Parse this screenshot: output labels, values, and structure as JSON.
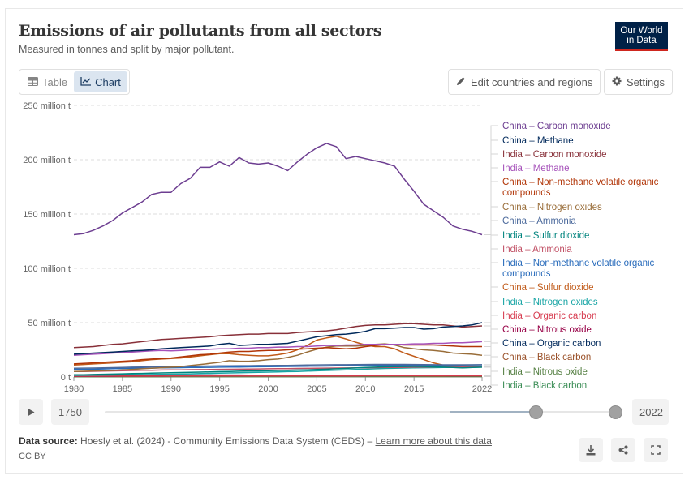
{
  "header": {
    "title": "Emissions of air pollutants from all sectors",
    "subtitle": "Measured in tonnes and split by major pollutant.",
    "logo_line1": "Our World",
    "logo_line2": "in Data"
  },
  "toolbar": {
    "tab_table": "Table",
    "tab_chart": "Chart",
    "active_tab": "Chart",
    "edit_button": "Edit countries and regions",
    "settings_button": "Settings"
  },
  "timeline": {
    "start_year": "1750",
    "end_year": "2022",
    "selected_start": 1980,
    "selected_end": 2022,
    "range_min": 1750,
    "range_max": 2022
  },
  "footer": {
    "source_label": "Data source:",
    "source_text": "Hoesly et al. (2024) - Community Emissions Data System (CEDS) – ",
    "learn_more": "Learn more about this data",
    "license": "CC BY"
  },
  "chart_data": {
    "type": "line",
    "title": "Emissions of air pollutants from all sectors",
    "subtitle": "Measured in tonnes and split by major pollutant.",
    "xlabel": "",
    "ylabel": "",
    "unit": "million t",
    "xlim": [
      1980,
      2022
    ],
    "ylim": [
      0,
      250
    ],
    "grid": true,
    "legend": "right",
    "x_ticks": [
      1980,
      1985,
      1990,
      1995,
      2000,
      2005,
      2010,
      2015,
      2022
    ],
    "y_ticks": [
      {
        "value": 0,
        "label": "0 t"
      },
      {
        "value": 50,
        "label": "50 million t"
      },
      {
        "value": 100,
        "label": "100 million t"
      },
      {
        "value": 150,
        "label": "150 million t"
      },
      {
        "value": 200,
        "label": "200 million t"
      },
      {
        "value": 250,
        "label": "250 million t"
      }
    ],
    "x": [
      1980,
      1981,
      1982,
      1983,
      1984,
      1985,
      1986,
      1987,
      1988,
      1989,
      1990,
      1991,
      1992,
      1993,
      1994,
      1995,
      1996,
      1997,
      1998,
      1999,
      2000,
      2001,
      2002,
      2003,
      2004,
      2005,
      2006,
      2007,
      2008,
      2009,
      2010,
      2011,
      2012,
      2013,
      2014,
      2015,
      2016,
      2017,
      2018,
      2019,
      2020,
      2021,
      2022
    ],
    "series": [
      {
        "name": "China – Carbon monoxide",
        "color": "#6d3e91",
        "values": [
          131,
          132,
          135,
          139,
          144,
          151,
          156,
          161,
          168,
          170,
          170,
          178,
          183,
          193,
          193,
          198,
          194,
          202,
          197,
          196,
          197,
          194,
          190,
          198,
          205,
          211,
          215,
          212,
          201,
          203,
          201,
          199,
          197,
          194,
          182,
          171,
          159,
          153,
          147,
          139,
          136,
          134,
          131
        ]
      },
      {
        "name": "China – Methane",
        "color": "#00295b",
        "values": [
          21,
          21.5,
          22,
          22.5,
          23,
          23.5,
          24,
          24.5,
          25,
          26,
          26.5,
          27,
          27.5,
          28,
          28.5,
          30,
          31,
          29,
          29.5,
          30,
          30,
          30.5,
          31,
          33,
          35,
          37,
          38,
          39,
          39.5,
          40.5,
          42,
          44.5,
          44.5,
          45,
          45.5,
          45.5,
          44,
          44.5,
          46,
          46.5,
          47,
          48,
          50
        ]
      },
      {
        "name": "India – Carbon monoxide",
        "color": "#883039",
        "values": [
          27,
          27.5,
          28,
          29,
          30,
          30.5,
          31.5,
          32.5,
          33.5,
          34.5,
          35,
          35.5,
          36,
          36.5,
          37,
          38,
          38.5,
          39,
          39.5,
          39.5,
          40,
          40,
          40,
          41,
          41.5,
          42,
          42.5,
          43.5,
          45,
          46.5,
          47.5,
          48,
          48,
          48.5,
          49,
          49,
          48.5,
          48,
          48,
          47,
          46,
          46.5,
          47
        ]
      },
      {
        "name": "India – Methane",
        "color": "#a652ba",
        "values": [
          20,
          20.5,
          21,
          21.5,
          22,
          22.5,
          23,
          23.5,
          24,
          24.5,
          24,
          24.5,
          25,
          25,
          25.5,
          26,
          26,
          26.5,
          26.5,
          27,
          27,
          27.5,
          27.5,
          28,
          28,
          28.5,
          29,
          29,
          29.5,
          29.5,
          30,
          30,
          30,
          30,
          30,
          30.5,
          30.5,
          31,
          31,
          31.5,
          31.5,
          32,
          32.5
        ]
      },
      {
        "name": "China – Non-methane volatile organic compounds",
        "color": "#b13507",
        "values": [
          12,
          12.5,
          13,
          13.5,
          14,
          14.5,
          15,
          16,
          16.5,
          17,
          17.5,
          18.5,
          19.5,
          20.5,
          21,
          22,
          23,
          23.5,
          23.5,
          24,
          24.5,
          24.5,
          25,
          25.5,
          26,
          26.5,
          27,
          26.5,
          26,
          26.5,
          28,
          29,
          30,
          30,
          29.5,
          29.5,
          29.5,
          29.5,
          29,
          28.5,
          28,
          28,
          28
        ]
      },
      {
        "name": "China – Nitrogen oxides",
        "color": "#996d39",
        "values": [
          5,
          5.2,
          5.5,
          5.8,
          6,
          6.5,
          7,
          7.5,
          8,
          8.5,
          9,
          9.5,
          10.5,
          11.5,
          12.5,
          13.5,
          15,
          14.5,
          14.5,
          15,
          16,
          16.5,
          18,
          20,
          23,
          25.5,
          27.5,
          28.5,
          28.5,
          28.5,
          29,
          30,
          30.5,
          29.5,
          27,
          26,
          25,
          24.5,
          23.5,
          22,
          21.5,
          21,
          20
        ]
      },
      {
        "name": "China – Ammonia",
        "color": "#4c6a9c",
        "values": [
          8,
          8.1,
          8.2,
          8.4,
          8.6,
          8.8,
          9,
          9.1,
          9.3,
          9.4,
          9.6,
          9.7,
          9.8,
          10,
          10.1,
          10.2,
          10.3,
          10.4,
          10.4,
          10.5,
          10.5,
          10.6,
          10.7,
          10.8,
          11,
          11.1,
          11.2,
          11.3,
          11.3,
          11.4,
          11.5,
          11.6,
          11.6,
          11.6,
          11.6,
          11.5,
          11.4,
          11.3,
          11.2,
          11.2,
          11.2,
          11.2,
          11.3
        ]
      },
      {
        "name": "India – Sulfur dioxide",
        "color": "#00847e",
        "values": [
          2,
          2.1,
          2.3,
          2.5,
          2.7,
          2.9,
          3.1,
          3.3,
          3.5,
          3.7,
          3.9,
          4.1,
          4.3,
          4.5,
          4.7,
          4.9,
          5.1,
          5.3,
          5.5,
          5.6,
          5.8,
          6,
          6.2,
          6.4,
          6.6,
          6.9,
          7.2,
          7.5,
          7.9,
          8.3,
          8.7,
          9,
          9.3,
          9.5,
          9.6,
          9.7,
          9.6,
          9.3,
          9,
          8.7,
          8.4,
          8.7,
          9
        ]
      },
      {
        "name": "India – Ammonia",
        "color": "#c15065",
        "values": [
          5,
          5.1,
          5.2,
          5.4,
          5.6,
          5.8,
          6,
          6.1,
          6.2,
          6.4,
          6.5,
          6.6,
          6.7,
          6.8,
          6.9,
          7,
          7.1,
          7.2,
          7.3,
          7.4,
          7.5,
          7.6,
          7.7,
          7.8,
          7.9,
          8,
          8.1,
          8.2,
          8.3,
          8.4,
          8.5,
          8.6,
          8.7,
          8.8,
          8.9,
          9,
          9.1,
          9.2,
          9.3,
          9.4,
          9.5,
          9.6,
          9.7
        ]
      },
      {
        "name": "India – Non-methane volatile organic compounds",
        "color": "#286bbb",
        "values": [
          7,
          7.1,
          7.2,
          7.4,
          7.6,
          7.8,
          8,
          8.1,
          8.2,
          8.4,
          8.5,
          8.6,
          8.7,
          8.8,
          8.9,
          9,
          9.1,
          9.2,
          9.3,
          9.4,
          9.5,
          9.6,
          9.7,
          9.8,
          9.9,
          10,
          10.1,
          10.2,
          10.3,
          10.4,
          10.5,
          10.6,
          10.7,
          10.8,
          10.9,
          11,
          11,
          11,
          11,
          11,
          11,
          11.1,
          11.2
        ]
      },
      {
        "name": "China – Sulfur dioxide",
        "color": "#c05917",
        "values": [
          11,
          11.5,
          12,
          12.5,
          13,
          13.5,
          14,
          15,
          16,
          16.5,
          17,
          17.5,
          18.5,
          19.5,
          20.5,
          21.5,
          21.5,
          20.5,
          20,
          19.5,
          19.5,
          20.5,
          22,
          25,
          29,
          34,
          36,
          37.5,
          35,
          32,
          29.5,
          28,
          28,
          26,
          22,
          19,
          16,
          13,
          11,
          10,
          9.5,
          9.5,
          9
        ]
      },
      {
        "name": "India – Nitrogen oxides",
        "color": "#18a5a5",
        "values": [
          1.5,
          1.6,
          1.7,
          1.8,
          1.9,
          2,
          2.1,
          2.2,
          2.3,
          2.4,
          2.5,
          2.7,
          2.9,
          3.1,
          3.3,
          3.5,
          3.7,
          3.9,
          4.1,
          4.3,
          4.5,
          4.7,
          4.9,
          5.1,
          5.4,
          5.7,
          6,
          6.3,
          6.6,
          6.9,
          7.2,
          7.5,
          7.8,
          8,
          8.2,
          8.4,
          8.5,
          8.6,
          8.7,
          8.8,
          8.6,
          8.8,
          9
        ]
      },
      {
        "name": "India – Organic carbon",
        "color": "#d73c50",
        "values": [
          0.8,
          0.8,
          0.8,
          0.8,
          0.8,
          0.8,
          0.8,
          0.8,
          0.8,
          0.8,
          0.9,
          0.9,
          0.9,
          0.9,
          0.9,
          0.9,
          0.9,
          0.9,
          0.9,
          0.9,
          1,
          1,
          1,
          1,
          1,
          1,
          1,
          1,
          1,
          1,
          1.1,
          1.1,
          1.1,
          1.1,
          1.1,
          1.1,
          1.1,
          1.1,
          1.1,
          1.1,
          1.1,
          1.1,
          1.1
        ]
      },
      {
        "name": "China – Nitrous oxide",
        "color": "#970046",
        "values": [
          0.7,
          0.7,
          0.7,
          0.7,
          0.7,
          0.8,
          0.8,
          0.8,
          0.8,
          0.8,
          0.9,
          0.9,
          0.9,
          0.9,
          1,
          1,
          1,
          1,
          1,
          1,
          1,
          1.1,
          1.1,
          1.1,
          1.2,
          1.2,
          1.2,
          1.3,
          1.3,
          1.3,
          1.4,
          1.4,
          1.4,
          1.5,
          1.5,
          1.5,
          1.5,
          1.5,
          1.5,
          1.5,
          1.5,
          1.5,
          1.5
        ]
      },
      {
        "name": "China – Organic carbon",
        "color": "#00295b",
        "values": [
          1.8,
          1.8,
          1.8,
          1.8,
          1.8,
          1.8,
          1.8,
          1.8,
          1.8,
          1.8,
          1.8,
          1.8,
          1.8,
          1.8,
          1.8,
          1.8,
          1.8,
          1.8,
          1.7,
          1.7,
          1.7,
          1.7,
          1.7,
          1.7,
          1.7,
          1.7,
          1.7,
          1.7,
          1.6,
          1.6,
          1.6,
          1.6,
          1.6,
          1.5,
          1.5,
          1.4,
          1.4,
          1.3,
          1.3,
          1.2,
          1.2,
          1.2,
          1.2
        ]
      },
      {
        "name": "China – Black carbon",
        "color": "#9a5129",
        "values": [
          1,
          1,
          1,
          1,
          1,
          1,
          1,
          1,
          1,
          1,
          1,
          1,
          1.1,
          1.1,
          1.1,
          1.1,
          1.1,
          1.1,
          1.1,
          1.1,
          1.1,
          1.1,
          1.2,
          1.2,
          1.3,
          1.3,
          1.4,
          1.4,
          1.4,
          1.4,
          1.4,
          1.4,
          1.4,
          1.3,
          1.3,
          1.2,
          1.1,
          1,
          1,
          0.9,
          0.9,
          0.9,
          0.9
        ]
      },
      {
        "name": "India – Nitrous oxide",
        "color": "#578145",
        "values": [
          0.2,
          0.2,
          0.2,
          0.2,
          0.2,
          0.2,
          0.2,
          0.2,
          0.2,
          0.2,
          0.3,
          0.3,
          0.3,
          0.3,
          0.3,
          0.3,
          0.3,
          0.3,
          0.3,
          0.3,
          0.3,
          0.3,
          0.3,
          0.3,
          0.3,
          0.4,
          0.4,
          0.4,
          0.4,
          0.4,
          0.4,
          0.4,
          0.4,
          0.4,
          0.4,
          0.4,
          0.4,
          0.4,
          0.4,
          0.4,
          0.4,
          0.4,
          0.4
        ]
      },
      {
        "name": "India – Black carbon",
        "color": "#3c8e57",
        "values": [
          0.5,
          0.5,
          0.5,
          0.5,
          0.5,
          0.5,
          0.5,
          0.5,
          0.5,
          0.5,
          0.5,
          0.5,
          0.5,
          0.5,
          0.6,
          0.6,
          0.6,
          0.6,
          0.6,
          0.6,
          0.6,
          0.6,
          0.6,
          0.6,
          0.6,
          0.6,
          0.7,
          0.7,
          0.7,
          0.7,
          0.7,
          0.7,
          0.7,
          0.7,
          0.7,
          0.7,
          0.7,
          0.7,
          0.7,
          0.7,
          0.7,
          0.7,
          0.7
        ]
      }
    ]
  }
}
